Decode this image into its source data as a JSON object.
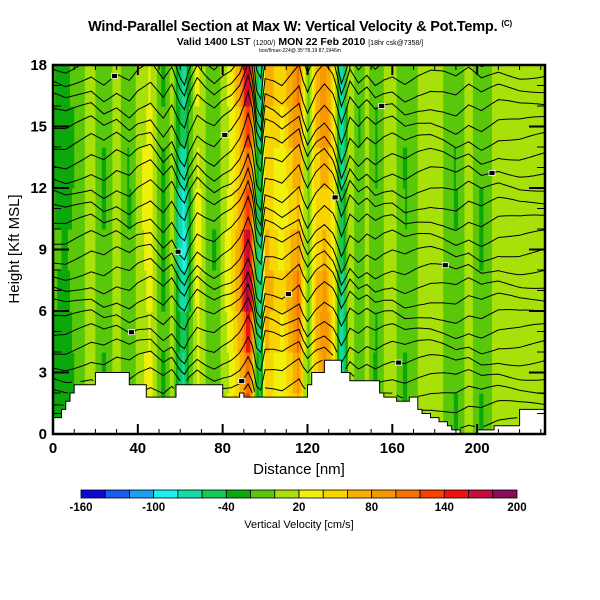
{
  "header": {
    "title": "Wind-Parallel Section at Max W: Vertical Velocity & Pot.Temp.",
    "title_mark": "(C)",
    "subtitle": "Valid 1400 LST",
    "subtitle_utc": "(1200/)",
    "subtitle_date": "MON 22 Feb 2010",
    "subtitle_run": "[18hr csk@7358/]",
    "subsubtitle": "box/f/max-224@ 35°78,19 87,1946m"
  },
  "chart_data": {
    "type": "heatmap",
    "title": "Wind-Parallel Section at Max W: Vertical Velocity & Pot.Temp.",
    "xlabel": "Distance [nm]",
    "ylabel": "Height [Kft MSL]",
    "xlim": [
      0,
      232
    ],
    "ylim": [
      0,
      18
    ],
    "x_ticks": [
      "0",
      "40",
      "80",
      "120",
      "160",
      "200"
    ],
    "x_tick_values": [
      0,
      40,
      80,
      120,
      160,
      200
    ],
    "y_ticks": [
      "0",
      "3",
      "6",
      "9",
      "12",
      "15",
      "18"
    ],
    "y_tick_values": [
      0,
      3,
      6,
      9,
      12,
      15,
      18
    ],
    "colorbar": {
      "title": "Vertical Velocity [cm/s]",
      "labels": [
        "-160",
        "-100",
        "-40",
        "20",
        "80",
        "140",
        "200"
      ],
      "label_values": [
        -160,
        -100,
        -40,
        20,
        80,
        140,
        200
      ],
      "bounds": [
        -160,
        -140,
        -120,
        -100,
        -80,
        -60,
        -40,
        -20,
        0,
        20,
        40,
        60,
        80,
        100,
        120,
        140,
        160,
        180,
        200
      ],
      "colors": [
        "#0a0ad8",
        "#1a5cf0",
        "#1aa0f0",
        "#1cf0f0",
        "#14dca6",
        "#14c85a",
        "#0aa80a",
        "#5ac80a",
        "#a8e00a",
        "#f0f00a",
        "#f8d400",
        "#f8b000",
        "#f89800",
        "#f87000",
        "#f84000",
        "#f01010",
        "#c80a3c",
        "#8c0a5a"
      ]
    },
    "terrain_kft": {
      "x": [
        0,
        4,
        6,
        8,
        10,
        14,
        20,
        34,
        36,
        42,
        44,
        56,
        58,
        62,
        64,
        66,
        68,
        70,
        72,
        76,
        80,
        82,
        84,
        86,
        88,
        90,
        98,
        100,
        102,
        104,
        106,
        120,
        122,
        124,
        126,
        128,
        134,
        136,
        140,
        148,
        150,
        152,
        154,
        156,
        158,
        160,
        162,
        164,
        166,
        168,
        170,
        172,
        174,
        176,
        178,
        180,
        182,
        184,
        186,
        188,
        190,
        192,
        194,
        196,
        198,
        200,
        202,
        204,
        206,
        208,
        210,
        212,
        214,
        216,
        218,
        220,
        222,
        232
      ],
      "h": [
        0.8,
        1.2,
        1.6,
        2.0,
        2.4,
        2.4,
        3.0,
        3.0,
        2.4,
        2.4,
        1.8,
        1.8,
        2.4,
        2.4,
        2.4,
        2.4,
        2.4,
        2.4,
        2.4,
        2.4,
        1.8,
        1.8,
        1.8,
        1.8,
        2.0,
        1.8,
        1.8,
        1.8,
        1.8,
        1.8,
        1.8,
        2.4,
        3.0,
        3.0,
        3.0,
        3.6,
        3.6,
        3.0,
        2.6,
        2.6,
        2.6,
        2.6,
        2.0,
        1.8,
        1.8,
        1.8,
        1.6,
        1.6,
        1.6,
        1.8,
        1.8,
        1.2,
        1.0,
        1.0,
        0.8,
        0.8,
        0.6,
        0.6,
        0.4,
        0.2,
        0.2,
        0.0,
        0.0,
        0.0,
        0.0,
        0.2,
        0.2,
        0.2,
        0.2,
        0.4,
        0.4,
        0.4,
        0.4,
        0.4,
        0.4,
        1.2,
        1.2,
        1.2
      ]
    },
    "w_bands_cm_s": {
      "x": [
        0,
        6,
        12,
        18,
        24,
        30,
        36,
        40,
        46,
        52,
        56,
        60,
        62,
        64,
        68,
        72,
        76,
        80,
        84,
        88,
        90,
        92,
        94,
        96,
        98,
        100,
        104,
        108,
        112,
        116,
        118,
        120,
        124,
        128,
        132,
        134,
        136,
        138,
        140,
        144,
        148,
        152,
        156,
        160,
        166,
        172,
        178,
        184,
        190,
        196,
        202,
        210,
        220,
        232
      ],
      "w": [
        -20,
        -30,
        -10,
        10,
        -20,
        10,
        -20,
        10,
        30,
        -30,
        10,
        -60,
        -80,
        -30,
        30,
        0,
        -20,
        10,
        30,
        70,
        110,
        160,
        100,
        -40,
        -70,
        60,
        50,
        30,
        60,
        90,
        30,
        -10,
        50,
        80,
        40,
        -10,
        -70,
        -30,
        20,
        -20,
        10,
        -20,
        0,
        10,
        -20,
        0,
        10,
        0,
        -20,
        10,
        -20,
        10,
        0,
        10
      ]
    },
    "isentrope_count": 24
  }
}
